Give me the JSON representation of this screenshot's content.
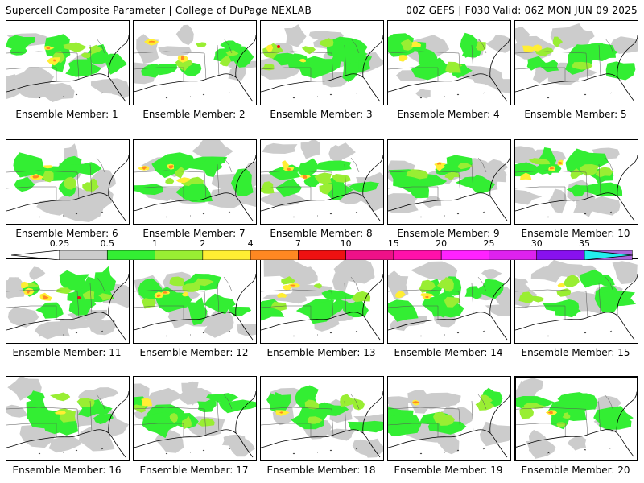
{
  "header": {
    "left": "Supercell Composite Parameter | College of DuPage NEXLAB",
    "right": "00Z GEFS | F030 Valid: 06Z MON JUN 09 2025"
  },
  "colorbar": {
    "ticks": [
      "0.25",
      "0.5",
      "1",
      "2",
      "4",
      "7",
      "10",
      "15",
      "20",
      "25",
      "30",
      "35"
    ],
    "colors": [
      "#cccccc",
      "#33ee33",
      "#99ee33",
      "#ffee33",
      "#ff8822",
      "#ee1111",
      "#ee1188",
      "#ff11aa",
      "#ff22ff",
      "#dd22ee",
      "#8811ee",
      "#aa66dd",
      "#22eeee"
    ]
  },
  "panels": [
    {
      "caption": "Ensemble Member: 1"
    },
    {
      "caption": "Ensemble Member: 2"
    },
    {
      "caption": "Ensemble Member: 3"
    },
    {
      "caption": "Ensemble Member: 4"
    },
    {
      "caption": "Ensemble Member: 5"
    },
    {
      "caption": "Ensemble Member: 6"
    },
    {
      "caption": "Ensemble Member: 7"
    },
    {
      "caption": "Ensemble Member: 8"
    },
    {
      "caption": "Ensemble Member: 9"
    },
    {
      "caption": "Ensemble Member: 10"
    },
    {
      "caption": "Ensemble Member: 11"
    },
    {
      "caption": "Ensemble Member: 12"
    },
    {
      "caption": "Ensemble Member: 13"
    },
    {
      "caption": "Ensemble Member: 14"
    },
    {
      "caption": "Ensemble Member: 15"
    },
    {
      "caption": "Ensemble Member: 16"
    },
    {
      "caption": "Ensemble Member: 17"
    },
    {
      "caption": "Ensemble Member: 18"
    },
    {
      "caption": "Ensemble Member: 19"
    },
    {
      "caption": "Ensemble Member: 20",
      "selected": true
    }
  ]
}
